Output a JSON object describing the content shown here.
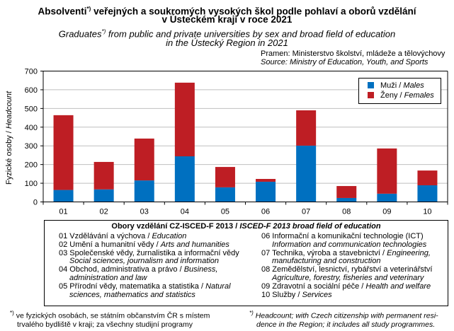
{
  "title": {
    "cz_line1_a": "Absolventi",
    "cz_sup": "*)",
    "cz_line1_b": " veřejných a soukromých  vysokých  škol podle pohlaví a oborů vzdělání",
    "cz_line2": "v Ústeckém  kraji v roce 2021",
    "en_line1_a": "Graduates",
    "en_sup": "*)",
    "en_line1_b": " from public and private universities by sex and broad field of education",
    "en_line2": "in the Ústecký Region  in 2021"
  },
  "source": {
    "cz": "Pramen: Ministerstvo školství, mládeže a tělovýchovy",
    "en": "Source: Ministry of Education, Youth, and Sports"
  },
  "colors": {
    "males": "#0070C0",
    "females": "#BE1E24",
    "grid": "#BFBFBF"
  },
  "chart_data": {
    "type": "bar",
    "stacked": true,
    "title": "Graduates from public and private universities by sex and broad field of education in the Ústecký Region in 2021",
    "xlabel": "",
    "ylabel": "Fyzické osoby / Headcount",
    "ylabel_cz": "Fyzické osoby / ",
    "ylabel_en": "Headcount",
    "ylim": [
      0,
      700
    ],
    "yticks": [
      0,
      100,
      200,
      300,
      400,
      500,
      600,
      700
    ],
    "grid": true,
    "legend_position": "top-right",
    "categories": [
      "01",
      "02",
      "03",
      "04",
      "05",
      "06",
      "07",
      "08",
      "09",
      "10"
    ],
    "series": [
      {
        "name": "Muži / Males",
        "name_cz": "Muži / ",
        "name_en": "Males",
        "values": [
          64,
          67,
          115,
          244,
          78,
          108,
          301,
          21,
          44,
          89
        ]
      },
      {
        "name": "Ženy / Females",
        "name_cz": "Ženy / ",
        "name_en": "Females",
        "values": [
          400,
          147,
          224,
          394,
          109,
          15,
          189,
          64,
          242,
          79
        ]
      }
    ]
  },
  "categories_box": {
    "heading_cz": "Obory vzdělání CZ-ISCED-F 2013 / ",
    "heading_en": "ISCED-F 2013 broad field of education",
    "left": [
      {
        "cz": "01 Vzdělávání a výchova / ",
        "en": "Education"
      },
      {
        "cz": "02 Umění  a humanitní  vědy / ",
        "en": "Arts and humanities"
      },
      {
        "cz": "03 Společenské vědy, žurnalistika a informační vědy",
        "en": "",
        "en2": "Social sciences, journalism and information"
      },
      {
        "cz": "04 Obchod, administrativa a právo / ",
        "en": "Business,",
        "en2": "administration and law"
      },
      {
        "cz": "05 Přírodní  vědy, matematika a statistika / ",
        "en": "Natural",
        "en2": "sciences, mathematics and statistics"
      }
    ],
    "right": [
      {
        "cz": "06 Informační a komunikační  technologie (ICT)",
        "en": "",
        "en2": "Information and communication technologies"
      },
      {
        "cz": "07 Technika, výroba a stavebnictví / ",
        "en": "Engineering,",
        "en2": "manufacturing and construction"
      },
      {
        "cz": "08 Zemědělství, lesnictví, rybářství a veterinářství",
        "en": "",
        "en2": "Agriculture, forestry, fisheries and veterinary"
      },
      {
        "cz": "09 Zdravotní a sociální péče / ",
        "en": "Health and welfare"
      },
      {
        "cz": "10 Služby / ",
        "en": "Services"
      }
    ]
  },
  "footnotes": {
    "cz_mark": "*)",
    "cz_line1": " ve fyzických osobách, se státním občanstvím ČR  s místem",
    "cz_line2": "trvalého bydliště v kraji;  za všechny studijní programy",
    "en_mark": "*)",
    "en_line1": " Headcount; with Czech citizenship with permanent resi-",
    "en_line2": "dence in the Region; it includes all study programmes."
  }
}
